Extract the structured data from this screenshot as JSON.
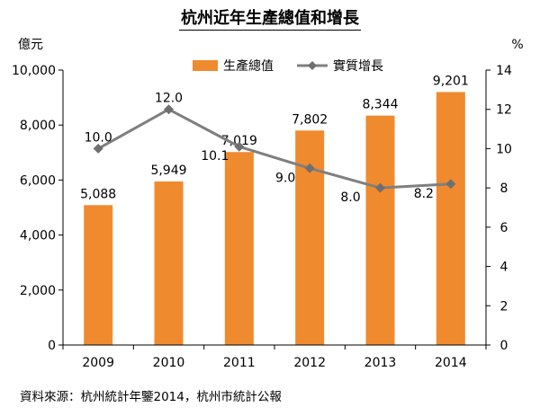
{
  "chart_data": {
    "type": "bar",
    "title": "杭州近年生產總值和增長",
    "categories": [
      "2009",
      "2010",
      "2011",
      "2012",
      "2013",
      "2014"
    ],
    "series": [
      {
        "name": "生產總值",
        "kind": "bar",
        "axis": "left",
        "values": [
          5088,
          5949,
          7019,
          7802,
          8344,
          9201
        ],
        "labels": [
          "5,088",
          "5,949",
          "7,019",
          "7,802",
          "8,344",
          "9,201"
        ],
        "color": "#F08A2E"
      },
      {
        "name": "實質增長",
        "kind": "line",
        "axis": "right",
        "values": [
          10.0,
          12.0,
          10.1,
          9.0,
          8.0,
          8.2
        ],
        "labels": [
          "10.0",
          "12.0",
          "10.1",
          "9.0",
          "8.0",
          "8.2"
        ],
        "color": "#7F7F7F"
      }
    ],
    "ylabel": "億元",
    "y2label": "%",
    "ylim": [
      0,
      10000
    ],
    "y2lim": [
      0,
      14
    ],
    "yticks": [
      "0",
      "2,000",
      "4,000",
      "6,000",
      "8,000",
      "10,000"
    ],
    "y2ticks": [
      "0",
      "2",
      "4",
      "6",
      "8",
      "10",
      "12",
      "14"
    ],
    "legend_position": "top-center",
    "grid": false
  },
  "source_text": "資料來源：杭州統計年鑒2014，杭州市統計公報"
}
